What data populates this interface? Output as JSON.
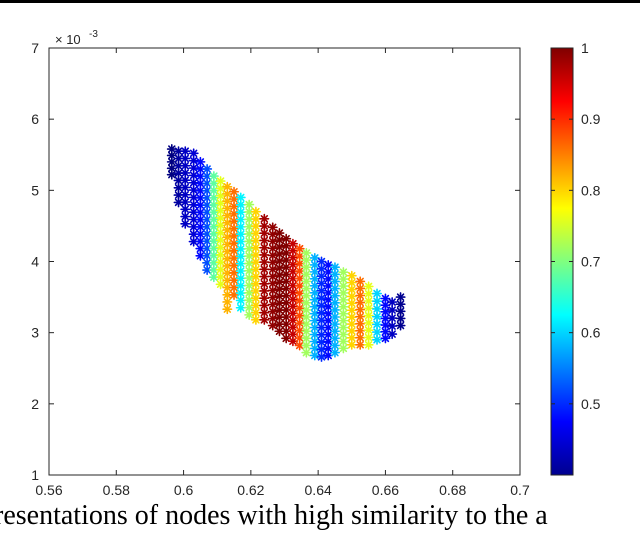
{
  "caption": {
    "visible_text": "resentations of nodes with high similarity to the a"
  },
  "chart_data": {
    "type": "scatter",
    "title": "",
    "xlabel": "",
    "ylabel": "",
    "xlim": [
      0.56,
      0.7
    ],
    "ylim": [
      0.001,
      0.007
    ],
    "xticks": [
      "0.56",
      "0.58",
      "0.6",
      "0.62",
      "0.64",
      "0.66",
      "0.68",
      "0.7"
    ],
    "yticks": [
      "1",
      "2",
      "3",
      "4",
      "5",
      "6",
      "7"
    ],
    "y_exponent_label": "× 10",
    "y_exponent_power": "-3",
    "marker": "asterisk",
    "grid": false,
    "legend": "none",
    "colorbar": {
      "colormap": "jet",
      "range": [
        0.4,
        1.0
      ],
      "ticks": [
        "0.5",
        "0.6",
        "0.7",
        "0.8",
        "0.9",
        "1"
      ],
      "tick_values": [
        0.5,
        0.6,
        0.7,
        0.8,
        0.9,
        1.0
      ]
    },
    "columns": [
      {
        "x": 0.5965,
        "y_top": 0.00558,
        "y_bottom": 0.00522,
        "value": 0.4
      },
      {
        "x": 0.5985,
        "y_top": 0.00555,
        "y_bottom": 0.00483,
        "value": 0.42
      },
      {
        "x": 0.6005,
        "y_top": 0.00555,
        "y_bottom": 0.00453,
        "value": 0.44
      },
      {
        "x": 0.603,
        "y_top": 0.00552,
        "y_bottom": 0.00428,
        "value": 0.45
      },
      {
        "x": 0.605,
        "y_top": 0.0054,
        "y_bottom": 0.00408,
        "value": 0.48
      },
      {
        "x": 0.607,
        "y_top": 0.0053,
        "y_bottom": 0.00388,
        "value": 0.52
      },
      {
        "x": 0.609,
        "y_top": 0.0052,
        "y_bottom": 0.00378,
        "value": 0.68
      },
      {
        "x": 0.611,
        "y_top": 0.00513,
        "y_bottom": 0.00368,
        "value": 0.76
      },
      {
        "x": 0.613,
        "y_top": 0.00505,
        "y_bottom": 0.00333,
        "value": 0.82
      },
      {
        "x": 0.615,
        "y_top": 0.00498,
        "y_bottom": 0.00353,
        "value": 0.86
      },
      {
        "x": 0.617,
        "y_top": 0.0049,
        "y_bottom": 0.00335,
        "value": 0.62
      },
      {
        "x": 0.6195,
        "y_top": 0.0048,
        "y_bottom": 0.00325,
        "value": 0.72
      },
      {
        "x": 0.6215,
        "y_top": 0.0047,
        "y_bottom": 0.00318,
        "value": 0.8
      },
      {
        "x": 0.624,
        "y_top": 0.0046,
        "y_bottom": 0.00318,
        "value": 0.98
      },
      {
        "x": 0.6265,
        "y_top": 0.00448,
        "y_bottom": 0.0031,
        "value": 0.99
      },
      {
        "x": 0.6285,
        "y_top": 0.0044,
        "y_bottom": 0.00302,
        "value": 1.0
      },
      {
        "x": 0.6305,
        "y_top": 0.00432,
        "y_bottom": 0.00292,
        "value": 1.0
      },
      {
        "x": 0.6325,
        "y_top": 0.00425,
        "y_bottom": 0.00288,
        "value": 0.96
      },
      {
        "x": 0.6345,
        "y_top": 0.00418,
        "y_bottom": 0.00282,
        "value": 0.88
      },
      {
        "x": 0.6365,
        "y_top": 0.00412,
        "y_bottom": 0.00272,
        "value": 0.72
      },
      {
        "x": 0.639,
        "y_top": 0.00405,
        "y_bottom": 0.00268,
        "value": 0.58
      },
      {
        "x": 0.641,
        "y_top": 0.004,
        "y_bottom": 0.00266,
        "value": 0.5
      },
      {
        "x": 0.643,
        "y_top": 0.00395,
        "y_bottom": 0.00268,
        "value": 0.48
      },
      {
        "x": 0.645,
        "y_top": 0.00392,
        "y_bottom": 0.00272,
        "value": 0.58
      },
      {
        "x": 0.6475,
        "y_top": 0.00385,
        "y_bottom": 0.00278,
        "value": 0.72
      },
      {
        "x": 0.65,
        "y_top": 0.0038,
        "y_bottom": 0.00283,
        "value": 0.8
      },
      {
        "x": 0.6525,
        "y_top": 0.00372,
        "y_bottom": 0.00283,
        "value": 0.86
      },
      {
        "x": 0.655,
        "y_top": 0.00365,
        "y_bottom": 0.00283,
        "value": 0.76
      },
      {
        "x": 0.6575,
        "y_top": 0.00355,
        "y_bottom": 0.0029,
        "value": 0.6
      },
      {
        "x": 0.66,
        "y_top": 0.00348,
        "y_bottom": 0.00292,
        "value": 0.48
      },
      {
        "x": 0.662,
        "y_top": 0.00343,
        "y_bottom": 0.00298,
        "value": 0.44
      },
      {
        "x": 0.6645,
        "y_top": 0.0035,
        "y_bottom": 0.0031,
        "value": 0.41
      }
    ]
  }
}
